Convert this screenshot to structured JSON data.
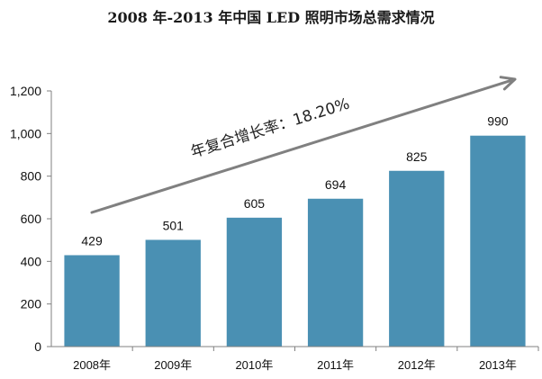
{
  "chart_data": {
    "type": "bar",
    "title": "2008 年-2013 年中国 LED 照明市场总需求情况",
    "categories": [
      "2008年",
      "2009年",
      "2010年",
      "2011年",
      "2012年",
      "2013年"
    ],
    "values": [
      429,
      501,
      605,
      694,
      825,
      990
    ],
    "value_labels": [
      "429",
      "501",
      "605",
      "694",
      "825",
      "990"
    ],
    "ylim": [
      0,
      1200
    ],
    "yticks": [
      0,
      200,
      400,
      600,
      800,
      1000,
      1200
    ],
    "ytick_labels": [
      "0",
      "200",
      "400",
      "600",
      "800",
      "1,000",
      "1,200"
    ],
    "xlabel": "",
    "ylabel": "",
    "grid": false,
    "bar_color": "#4a90b3",
    "annotation": {
      "text": "年复合增长率：18.20%",
      "arrow_color": "#808080"
    }
  }
}
